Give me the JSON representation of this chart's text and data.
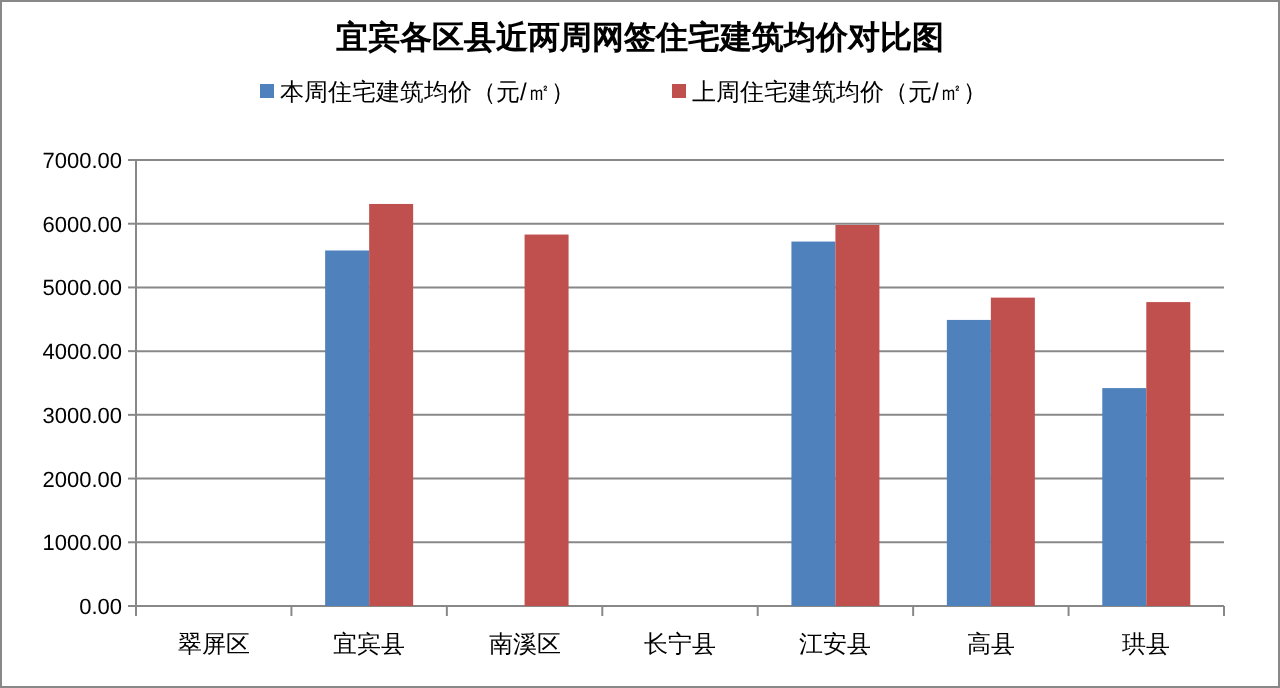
{
  "chart_data": {
    "type": "bar",
    "title": "宜宾各区县近两周网签住宅建筑均价对比图",
    "categories": [
      "翠屏区",
      "宜宾县",
      "南溪区",
      "长宁县",
      "江安县",
      "高县",
      "珙县"
    ],
    "series": [
      {
        "name": "本周住宅建筑均价（元/㎡）",
        "color": "#4f81bd",
        "values": [
          null,
          5580,
          null,
          null,
          5720,
          4490,
          3420
        ]
      },
      {
        "name": "上周住宅建筑均价（元/㎡）",
        "color": "#c0504d",
        "values": [
          null,
          6310,
          5830,
          null,
          5980,
          4840,
          4770
        ]
      }
    ],
    "ylim": [
      0,
      7000
    ],
    "yticks": [
      {
        "value": 0,
        "label": "0.00"
      },
      {
        "value": 1000,
        "label": "1000.00"
      },
      {
        "value": 2000,
        "label": "2000.00"
      },
      {
        "value": 3000,
        "label": "3000.00"
      },
      {
        "value": 4000,
        "label": "4000.00"
      },
      {
        "value": 5000,
        "label": "5000.00"
      },
      {
        "value": 6000,
        "label": "6000.00"
      },
      {
        "value": 7000,
        "label": "7000.00"
      }
    ],
    "grid": "y",
    "legend": "top"
  }
}
